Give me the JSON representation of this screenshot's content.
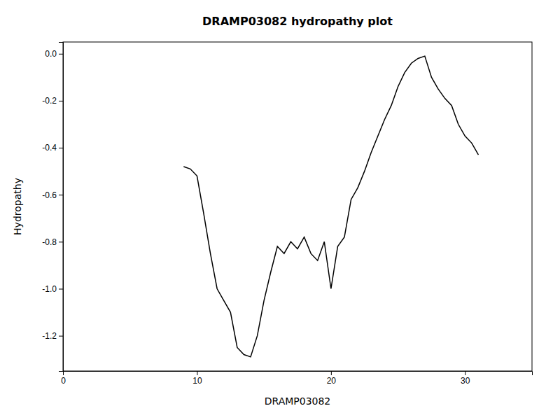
{
  "chart_data": {
    "type": "line",
    "title": "DRAMP03082 hydropathy plot",
    "xlabel": "DRAMP03082",
    "ylabel": "Hydropathy",
    "xlim": [
      0,
      35
    ],
    "ylim": [
      -1.35,
      0.05
    ],
    "xticks": [
      0,
      10,
      20,
      30
    ],
    "yticks": [
      {
        "value": 0.0,
        "label": "0.0"
      },
      -0.2,
      -0.4,
      -0.6,
      -0.8,
      {
        "value": -1.0,
        "label": "-1.0"
      },
      -1.2
    ],
    "color": "#000000",
    "x": [
      9.0,
      9.5,
      10.0,
      10.5,
      11.0,
      11.5,
      12.0,
      12.5,
      13.0,
      13.5,
      14.0,
      14.5,
      15.0,
      15.5,
      16.0,
      16.5,
      17.0,
      17.5,
      18.0,
      18.5,
      19.0,
      19.5,
      20.0,
      20.5,
      21.0,
      21.5,
      22.0,
      22.5,
      23.0,
      23.5,
      24.0,
      24.5,
      25.0,
      25.5,
      26.0,
      26.5,
      27.0,
      27.5,
      28.0,
      28.5,
      29.0,
      29.5,
      30.0,
      30.5,
      31.0
    ],
    "values": [
      -0.48,
      -0.49,
      -0.52,
      -0.68,
      -0.85,
      -1.0,
      -1.05,
      -1.1,
      -1.25,
      -1.28,
      -1.29,
      -1.2,
      -1.05,
      -0.93,
      -0.82,
      -0.85,
      -0.8,
      -0.83,
      -0.78,
      -0.85,
      -0.88,
      -0.8,
      -1.0,
      -0.82,
      -0.78,
      -0.62,
      -0.57,
      -0.5,
      -0.42,
      -0.35,
      -0.28,
      -0.22,
      -0.14,
      -0.08,
      -0.04,
      -0.02,
      -0.01,
      -0.1,
      -0.15,
      -0.19,
      -0.22,
      -0.3,
      -0.35,
      -0.38,
      -0.43
    ]
  }
}
